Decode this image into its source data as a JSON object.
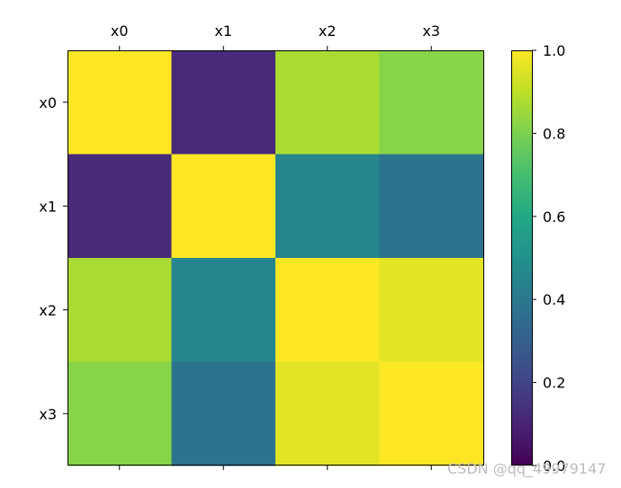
{
  "chart_data": {
    "type": "heatmap",
    "x_categories": [
      "x0",
      "x1",
      "x2",
      "x3"
    ],
    "y_categories": [
      "x0",
      "x1",
      "x2",
      "x3"
    ],
    "values": [
      [
        1.0,
        0.12,
        0.87,
        0.82
      ],
      [
        0.12,
        1.0,
        0.45,
        0.38
      ],
      [
        0.87,
        0.45,
        1.0,
        0.96
      ],
      [
        0.82,
        0.38,
        0.96,
        1.0
      ]
    ],
    "xaxis_position": "top",
    "colormap": "viridis",
    "colorbar": {
      "range": [
        0.0,
        1.0
      ],
      "ticks": [
        0.0,
        0.2,
        0.4,
        0.6,
        0.8,
        1.0
      ],
      "tick_labels": [
        "0.0",
        "0.2",
        "0.4",
        "0.6",
        "0.8",
        "1.0"
      ]
    },
    "title": "",
    "xlabel": "",
    "ylabel": "",
    "grid": false
  },
  "watermark": "CSDN @qq_49979147"
}
